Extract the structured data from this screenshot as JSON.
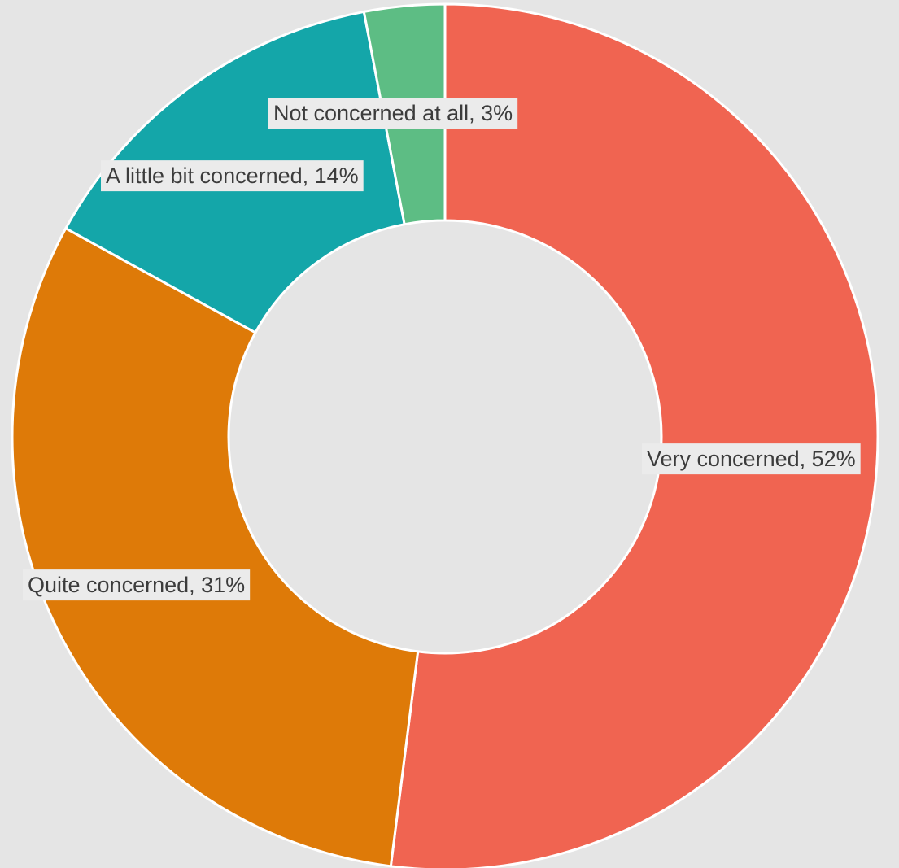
{
  "chart_data": {
    "type": "pie",
    "style": "donut",
    "categories": [
      "Very concerned",
      "Quite concerned",
      "A little bit concerned",
      "Not concerned at all"
    ],
    "values": [
      52,
      31,
      14,
      3
    ],
    "labels": [
      "Very concerned, 52%",
      "Quite concerned, 31%",
      "A little bit concerned, 14%",
      "Not concerned at all, 3%"
    ],
    "colors": [
      "#f06451",
      "#de7a08",
      "#14a6a9",
      "#5dbd84"
    ],
    "background": "#e5e5e5",
    "start": "top",
    "direction": "clockwise",
    "legend": "none"
  }
}
